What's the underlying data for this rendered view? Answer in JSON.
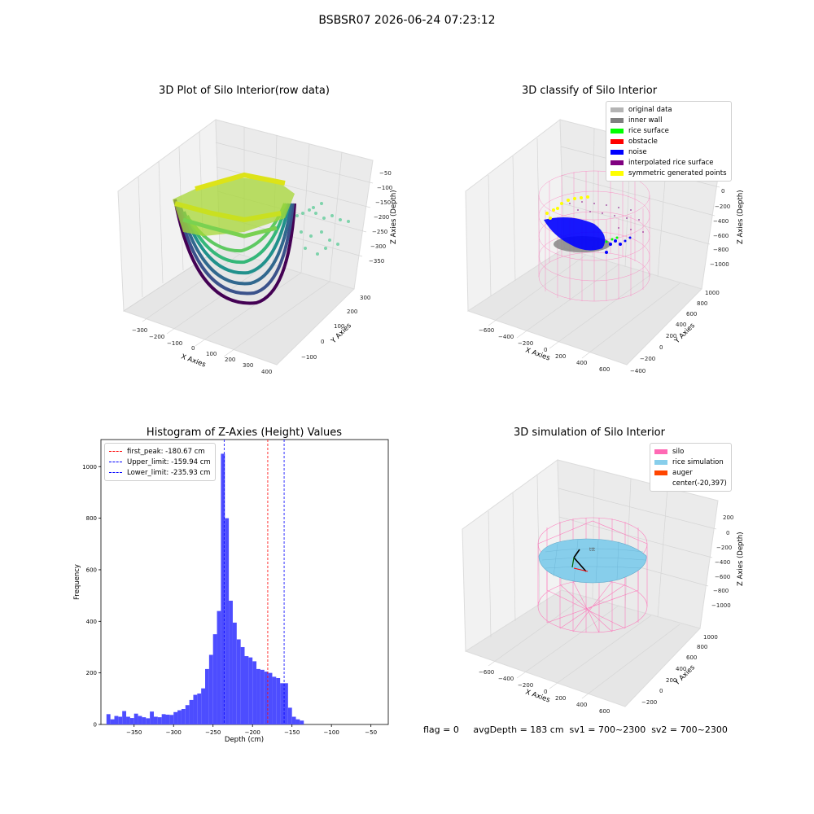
{
  "suptitle": "BSBSR07 2026-06-24 07:23:12",
  "panel1": {
    "title": "3D Plot of Silo Interior(row data)",
    "xlabel": "X Axies",
    "ylabel": "Y Axies",
    "zlabel": "Z Axies (Depth)",
    "xticks": [
      "−300",
      "−200",
      "−100",
      "0",
      "100",
      "200",
      "300",
      "400"
    ],
    "yticks": [
      "−100",
      "0",
      "100",
      "200",
      "300"
    ],
    "zticks": [
      "−50",
      "−100",
      "−150",
      "−200",
      "−250",
      "−300",
      "−350"
    ]
  },
  "panel2": {
    "title": "3D classify of Silo Interior",
    "xlabel": "X Axies",
    "ylabel": "Y Axies",
    "zlabel": "Z Axies (Depth)",
    "xticks": [
      "−600",
      "−400",
      "−200",
      "0",
      "200",
      "400",
      "600"
    ],
    "yticks": [
      "−400",
      "−200",
      "0",
      "200",
      "400",
      "600",
      "800",
      "1000"
    ],
    "zticks": [
      "200",
      "0",
      "−200",
      "−400",
      "−600",
      "−800",
      "−1000"
    ],
    "legend": [
      {
        "label": "original data",
        "color": "#b4b4b4"
      },
      {
        "label": "inner wall",
        "color": "#808080"
      },
      {
        "label": "rice surface",
        "color": "#00ff00"
      },
      {
        "label": "obstacle",
        "color": "#ff0000"
      },
      {
        "label": "noise",
        "color": "#0000ff"
      },
      {
        "label": "interpolated rice surface",
        "color": "#800080"
      },
      {
        "label": "symmetric generated points",
        "color": "#ffff00"
      }
    ]
  },
  "panel4": {
    "title": "3D simulation of Silo Interior",
    "xlabel": "X Axies",
    "ylabel": "Y Axies",
    "zlabel": "Z Axies (Depth)",
    "xticks": [
      "−600",
      "−400",
      "−200",
      "0",
      "200",
      "400",
      "600"
    ],
    "yticks": [
      "−200",
      "0",
      "200",
      "400",
      "600",
      "800",
      "1000"
    ],
    "zticks": [
      "200",
      "0",
      "−200",
      "−400",
      "−600",
      "−800",
      "−1000"
    ],
    "legend": [
      {
        "label": "silo",
        "color": "#ff69b4"
      },
      {
        "label": "rice simulation",
        "color": "#87ceeb"
      },
      {
        "label": "auger",
        "color": "#ff4500"
      },
      {
        "label": "center(-20,397)",
        "color": ""
      }
    ]
  },
  "footer": "flag = 0     avgDepth = 183 cm  sv1 = 700~2300  sv2 = 700~2300",
  "chart_data": {
    "type": "bar",
    "title": "Histogram of Z-Axies (Height) Values",
    "xlabel": "Depth (cm)",
    "ylabel": "Frequency",
    "xlim": [
      -392,
      -28
    ],
    "ylim": [
      0,
      1105
    ],
    "xticks": [
      -350,
      -300,
      -250,
      -200,
      -150,
      -100,
      -50
    ],
    "yticks": [
      0,
      200,
      400,
      600,
      800,
      1000
    ],
    "bar_color": "#4d4dff",
    "bin_start": -385,
    "bin_width": 5,
    "values": [
      40,
      20,
      33,
      30,
      52,
      30,
      25,
      42,
      33,
      28,
      24,
      50,
      30,
      28,
      40,
      38,
      37,
      48,
      55,
      60,
      75,
      95,
      115,
      120,
      140,
      215,
      270,
      350,
      440,
      1050,
      800,
      480,
      395,
      330,
      300,
      265,
      260,
      245,
      215,
      212,
      205,
      200,
      185,
      180,
      160,
      160,
      65,
      30,
      20,
      15
    ],
    "vlines": [
      {
        "label": "first_peak: -180.67 cm",
        "x": -180.67,
        "color": "#ff0000"
      },
      {
        "label": "Upper_limit: -159.94 cm",
        "x": -159.94,
        "color": "#0000ff"
      },
      {
        "label": "Lower_limit: -235.93 cm",
        "x": -235.93,
        "color": "#0000ff"
      }
    ],
    "legend_position": "upper-left"
  }
}
